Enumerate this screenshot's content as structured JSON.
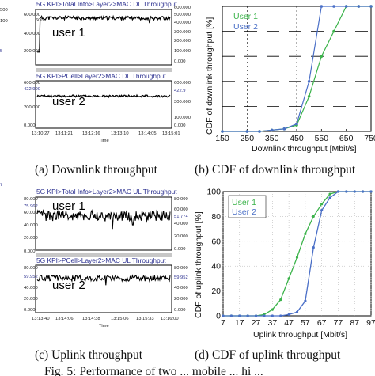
{
  "captions": {
    "a": "(a) Downlink throughput",
    "b": "(b) CDF of downlink throughput",
    "c": "(c) Uplink throughput",
    "d": "(d) CDF of uplink throughput",
    "fig": "Fig. 5: Performance of two ... mobile ... hi ..."
  },
  "colors": {
    "user1": "#3bb34a",
    "user2": "#4a6fc7",
    "trace": "#000000",
    "kpi_title": "#2a2f8f"
  },
  "chart_data": [
    {
      "type": "line",
      "title": "5G KPI>Total Info>Layer2>MAC DL Throughput",
      "user_label": "user 1",
      "yticks_left": [
        "600.000",
        "400.000",
        "200.000"
      ],
      "yticks_right": [
        "600.000",
        "500.000",
        "400.000",
        "300.000",
        "200.000",
        "100.000",
        "0.000"
      ],
      "left_edge_values": [
        "500",
        "100"
      ],
      "right_edge_values": [
        "600",
        "500"
      ],
      "side_value": "5",
      "ylim": [
        0,
        650
      ],
      "approx_level": 550
    },
    {
      "type": "line",
      "title": "5G KPI>PCell>Layer2>MAC DL Throughput",
      "user_label": "user 2",
      "yticks_left": [
        "600.000",
        "422.900",
        "200.000",
        "0.000"
      ],
      "yticks_right": [
        "600.000",
        "422.9",
        "300.000",
        "100.000",
        "0.000"
      ],
      "xticks": [
        "13:10:27",
        "13:11:21",
        "13:12:16",
        "13:13:10",
        "13:14:05",
        "13:15:01"
      ],
      "xlabel": "Time",
      "ylim": [
        0,
        650
      ],
      "approx_level": 440
    },
    {
      "type": "line",
      "title": "5G KPI>Total Info>Layer2>MAC UL Throughput",
      "user_label": "user 1",
      "yticks_left": [
        "80.000",
        "75.962",
        "60.000",
        "40.000",
        "20.000",
        "0.000"
      ],
      "yticks_right": [
        "80.000",
        "60.000",
        "51.774",
        "40.000",
        "20.000",
        "0.000"
      ],
      "side_value": "7",
      "ylim": [
        0,
        80
      ],
      "approx_level": 52
    },
    {
      "type": "line",
      "title": "5G KPI>PCell>Layer2>MAC UL Throughput",
      "user_label": "user 2",
      "yticks_left": [
        "80.000",
        "59.952",
        "40.000",
        "20.000",
        "0.000"
      ],
      "yticks_right": [
        "80.000",
        "59.952",
        "40.000",
        "20.000",
        "0.000"
      ],
      "xticks": [
        "13:13:40",
        "13:14:06",
        "13:14:38",
        "13:15:06",
        "13:15:33",
        "13:16:00"
      ],
      "xlabel": "Time",
      "ylim": [
        0,
        80
      ],
      "approx_level": 58
    },
    {
      "type": "line",
      "xlabel": "Downlink throughput [Mbit/s]",
      "ylabel": "CDF of downlink throughput [%]",
      "x": [
        150,
        250,
        350,
        450,
        550,
        650,
        750
      ],
      "xticks": [
        "150",
        "250",
        "350",
        "450",
        "550",
        "650",
        "750"
      ],
      "xlim": [
        150,
        750
      ],
      "ylim": [
        0,
        100
      ],
      "grid_y": [
        20,
        40,
        60,
        80
      ],
      "grid_x": [
        250,
        450
      ],
      "legend": "top-left",
      "series": [
        {
          "name": "User 1",
          "x": [
            150,
            250,
            300,
            350,
            400,
            450,
            500,
            550,
            600,
            650,
            700,
            750
          ],
          "values": [
            0,
            0,
            0,
            1,
            2,
            5,
            28,
            60,
            80,
            100,
            100,
            100
          ]
        },
        {
          "name": "User 2",
          "x": [
            150,
            250,
            300,
            350,
            400,
            450,
            500,
            550,
            600,
            650,
            700,
            750
          ],
          "values": [
            0,
            0,
            0,
            1,
            2,
            6,
            40,
            100,
            100,
            100,
            100,
            100
          ]
        }
      ]
    },
    {
      "type": "line",
      "xlabel": "Uplink throughput [Mbit/s]",
      "ylabel": "CDF of uplink throughput [%]",
      "xticks": [
        "7",
        "17",
        "27",
        "37",
        "47",
        "57",
        "67",
        "77",
        "87",
        "97"
      ],
      "xlim": [
        7,
        97
      ],
      "ylim": [
        0,
        100
      ],
      "yticks": [
        "0",
        "20",
        "40",
        "60",
        "80",
        "100"
      ],
      "legend": "top-left",
      "series": [
        {
          "name": "User 1",
          "x": [
            7,
            12,
            17,
            22,
            27,
            32,
            37,
            42,
            47,
            52,
            57,
            62,
            67,
            72,
            77,
            82,
            87,
            92,
            97
          ],
          "values": [
            0,
            0,
            0,
            0,
            0,
            1,
            5,
            13,
            30,
            47,
            66,
            80,
            90,
            98,
            100,
            100,
            100,
            100,
            100
          ]
        },
        {
          "name": "User 2",
          "x": [
            7,
            12,
            17,
            22,
            27,
            32,
            37,
            42,
            47,
            52,
            57,
            62,
            67,
            72,
            77,
            82,
            87,
            92,
            97
          ],
          "values": [
            0,
            0,
            0,
            0,
            0,
            0,
            0,
            0,
            1,
            3,
            12,
            55,
            85,
            95,
            100,
            100,
            100,
            100,
            100
          ]
        }
      ]
    }
  ]
}
